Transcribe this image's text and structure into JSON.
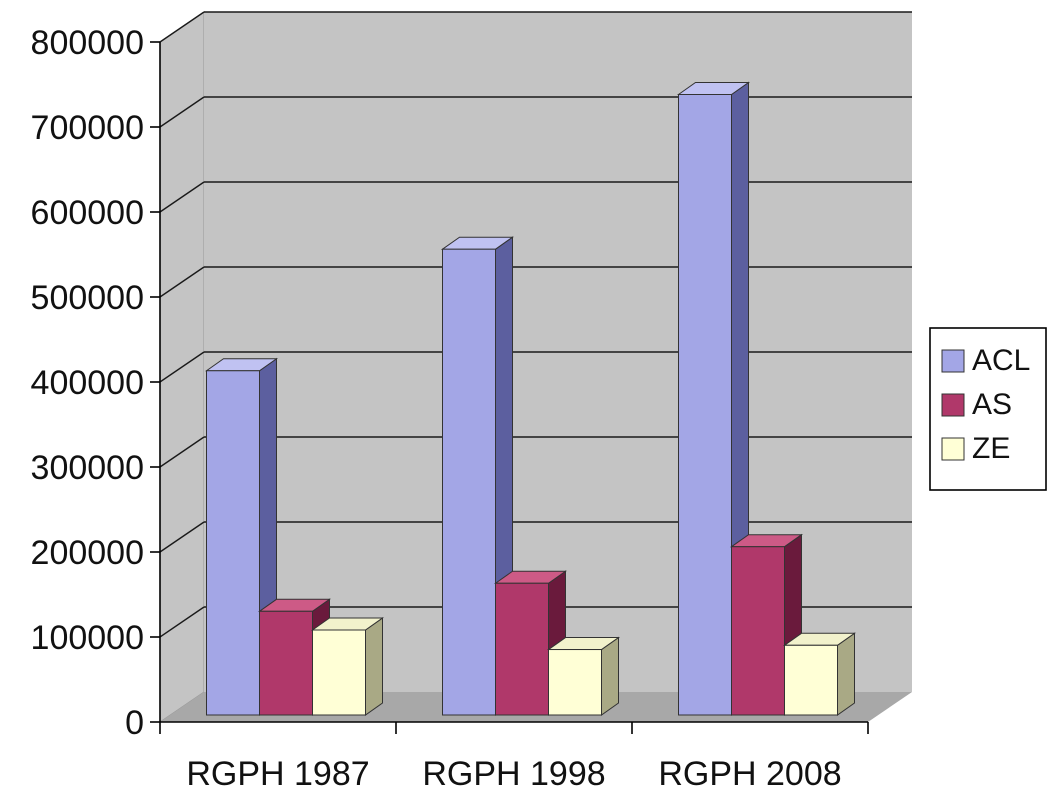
{
  "chart_data": {
    "type": "bar",
    "title": "",
    "xlabel": "",
    "ylabel": "",
    "categories": [
      "RGPH 1987",
      "RGPH 1998",
      "RGPH 2008"
    ],
    "series": [
      {
        "name": "ACL",
        "values": [
          405000,
          548000,
          730000
        ]
      },
      {
        "name": "AS",
        "values": [
          122000,
          155000,
          198000
        ]
      },
      {
        "name": "ZE",
        "values": [
          100000,
          77000,
          82000
        ]
      }
    ],
    "ylim": [
      0,
      800000
    ],
    "yticks": [
      0,
      100000,
      200000,
      300000,
      400000,
      500000,
      600000,
      700000,
      800000
    ],
    "ytick_labels": [
      "0",
      "100000",
      "200000",
      "300000",
      "400000",
      "500000",
      "600000",
      "700000",
      "800000"
    ],
    "grid": true,
    "legend_position": "right",
    "style": "3d-clustered-column"
  },
  "colors": {
    "wall": "#c4c4c4",
    "floor": "#a8a8a8",
    "gridline": "#1a1a1a",
    "ACL": {
      "front": "#a3a6e6",
      "top": "#c0c2f2",
      "side": "#5c5f9f"
    },
    "AS": {
      "front": "#b0386a",
      "top": "#cd5a86",
      "side": "#6a1a3c"
    },
    "ZE": {
      "front": "#ffffd6",
      "top": "#f2f2cc",
      "side": "#a9a985"
    }
  }
}
